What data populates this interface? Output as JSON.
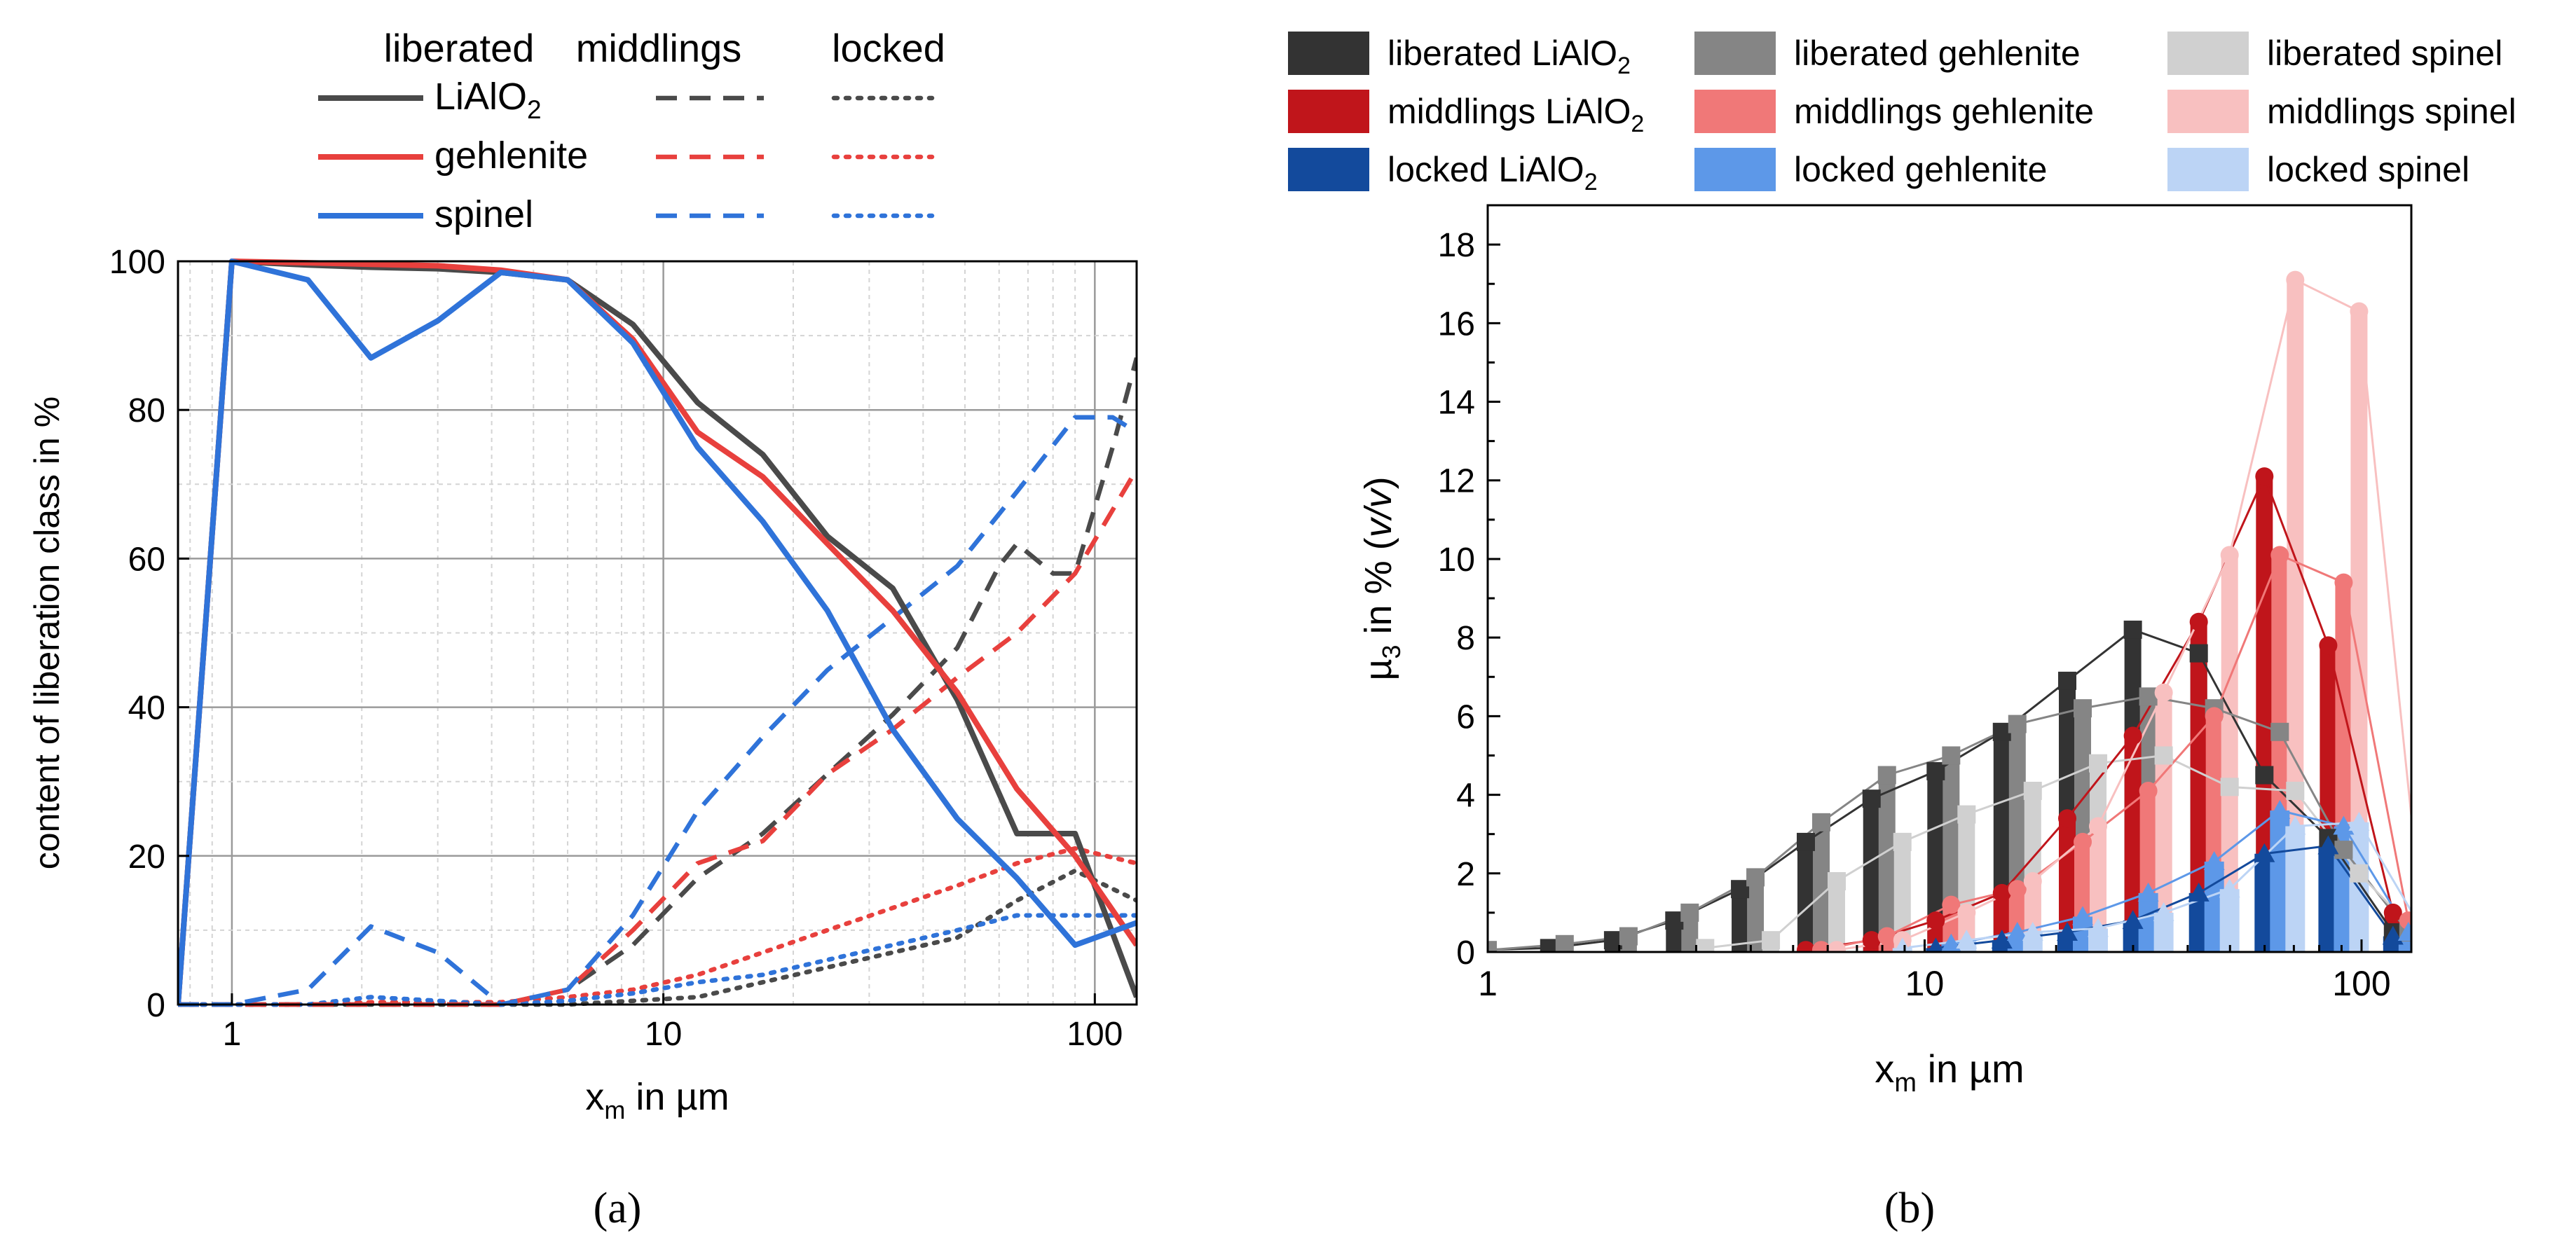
{
  "chart_data": [
    {
      "type": "line",
      "panel_label": "(a)",
      "title": "",
      "xlabel": "x_m in µm",
      "ylabel": "content of liberation class in %",
      "xscale": "log",
      "xlim": [
        0.75,
        125
      ],
      "ylim": [
        0,
        100
      ],
      "x_ticks": [
        1,
        10,
        100
      ],
      "x_tick_labels": [
        "1",
        "10",
        "100"
      ],
      "y_ticks": [
        0,
        20,
        40,
        60,
        80,
        100
      ],
      "y_tick_labels": [
        "0",
        "20",
        "40",
        "60",
        "80",
        "100"
      ],
      "grid": true,
      "legend": {
        "placement": "top",
        "column_headers": [
          "liberated",
          "middlings",
          "locked"
        ],
        "row_labels": [
          "LiAlO2",
          "gehlenite",
          "spinel"
        ]
      },
      "colors": {
        "LiAlO2": "#4a4a4a",
        "gehlenite": "#e8403d",
        "spinel": "#2f73d9"
      },
      "series": [
        {
          "name": "liberated LiAlO2",
          "phase": "LiAlO2",
          "class": "liberated",
          "x": [
            0.75,
            1.0,
            1.5,
            2.1,
            3.0,
            4.2,
            6.0,
            8.5,
            12,
            17,
            24,
            34,
            48,
            66,
            90,
            125
          ],
          "y": [
            0,
            100,
            99.5,
            99.2,
            99,
            98.5,
            97.5,
            91.5,
            81,
            74,
            63,
            56,
            41,
            23,
            23,
            1
          ]
        },
        {
          "name": "liberated gehlenite",
          "phase": "gehlenite",
          "class": "liberated",
          "x": [
            0.75,
            1.0,
            1.5,
            2.1,
            3.0,
            4.2,
            6.0,
            8.5,
            12,
            17,
            24,
            34,
            48,
            66,
            90,
            125
          ],
          "y": [
            0,
            100,
            99.8,
            99.6,
            99.4,
            98.8,
            97.5,
            89.5,
            77,
            71,
            62,
            53,
            42,
            29,
            20,
            8
          ]
        },
        {
          "name": "liberated spinel",
          "phase": "spinel",
          "class": "liberated",
          "x": [
            0.75,
            1.0,
            1.5,
            2.1,
            3.0,
            4.2,
            6.0,
            8.5,
            12,
            17,
            24,
            34,
            48,
            66,
            90,
            125
          ],
          "y": [
            0,
            100,
            97.5,
            87,
            92,
            98.5,
            97.5,
            89,
            75,
            65,
            53,
            37,
            25,
            17,
            8,
            11
          ]
        },
        {
          "name": "middlings LiAlO2",
          "phase": "LiAlO2",
          "class": "middlings",
          "x": [
            0.75,
            1.0,
            1.5,
            2.1,
            3.0,
            4.2,
            6.0,
            8.5,
            12,
            17,
            24,
            34,
            48,
            60,
            66,
            80,
            90,
            110,
            125
          ],
          "y": [
            0,
            0,
            0,
            0,
            0,
            0,
            2,
            8,
            17,
            23,
            31,
            39,
            48,
            59,
            62,
            58,
            58,
            75,
            87
          ]
        },
        {
          "name": "middlings gehlenite",
          "phase": "gehlenite",
          "class": "middlings",
          "x": [
            0.75,
            1.0,
            1.5,
            2.1,
            3.0,
            4.2,
            6.0,
            8.5,
            12,
            17,
            24,
            34,
            48,
            66,
            90,
            125
          ],
          "y": [
            0,
            0,
            0,
            0,
            0,
            0,
            2,
            10,
            19,
            22,
            31,
            37,
            44,
            50,
            58,
            72
          ]
        },
        {
          "name": "middlings spinel",
          "phase": "spinel",
          "class": "middlings",
          "x": [
            0.75,
            1.0,
            1.5,
            2.1,
            3.0,
            4.2,
            6.0,
            8.5,
            12,
            17,
            24,
            34,
            48,
            66,
            90,
            110,
            125
          ],
          "y": [
            0,
            0,
            2,
            10.5,
            7,
            0,
            2,
            12,
            26,
            36,
            45,
            52,
            59,
            69,
            79,
            79,
            77
          ]
        },
        {
          "name": "locked LiAlO2",
          "phase": "LiAlO2",
          "class": "locked",
          "x": [
            0.75,
            1.0,
            1.5,
            2.1,
            3.0,
            4.2,
            6.0,
            8.5,
            12,
            17,
            24,
            34,
            48,
            66,
            90,
            125
          ],
          "y": [
            0,
            0,
            0,
            0,
            0,
            0,
            0,
            0.5,
            1,
            3,
            5,
            7,
            9,
            14,
            18,
            14
          ]
        },
        {
          "name": "locked gehlenite",
          "phase": "gehlenite",
          "class": "locked",
          "x": [
            0.75,
            1.0,
            1.5,
            2.1,
            3.0,
            4.2,
            6.0,
            8.5,
            12,
            17,
            24,
            34,
            48,
            66,
            90,
            125
          ],
          "y": [
            0,
            0,
            0,
            0.3,
            0.3,
            0.3,
            1,
            2,
            4,
            7,
            10,
            13,
            16,
            19,
            21,
            19
          ]
        },
        {
          "name": "locked spinel",
          "phase": "spinel",
          "class": "locked",
          "x": [
            0.75,
            1.0,
            1.5,
            2.1,
            3.0,
            4.2,
            6.0,
            8.5,
            12,
            17,
            24,
            34,
            48,
            66,
            90,
            125
          ],
          "y": [
            0,
            0,
            0,
            1,
            0.5,
            0,
            0.5,
            1.5,
            3,
            4,
            6,
            8,
            10,
            12,
            12,
            12
          ]
        }
      ]
    },
    {
      "type": "bar",
      "panel_label": "(b)",
      "title": "",
      "xlabel": "x_m in µm",
      "ylabel": "µ3 in % (v/v)",
      "xscale": "log",
      "xlim": [
        1,
        130
      ],
      "ylim": [
        0,
        19
      ],
      "x_ticks": [
        1,
        10,
        100
      ],
      "x_tick_labels": [
        "1",
        "10",
        "100"
      ],
      "y_ticks": [
        0,
        2,
        4,
        6,
        8,
        10,
        12,
        14,
        16,
        18
      ],
      "y_tick_labels": [
        "0",
        "2",
        "4",
        "6",
        "8",
        "10",
        "12",
        "14",
        "16",
        "18"
      ],
      "grid": false,
      "legend": {
        "placement": "top",
        "columns": 3
      },
      "series": [
        {
          "name": "liberated LiAlO2",
          "phase": "LiAlO2",
          "class": "liberated",
          "color": "#333333",
          "marker": "square",
          "x": [
            1.0,
            1.5,
            2.1,
            2.9,
            4.1,
            5.8,
            8.2,
            11.5,
            16.3,
            23,
            32.5,
            46,
            65,
            91,
            128
          ],
          "y": [
            0.05,
            0.1,
            0.3,
            0.8,
            1.6,
            2.8,
            3.9,
            4.6,
            5.6,
            6.9,
            8.2,
            7.6,
            4.5,
            2.9,
            0.5
          ]
        },
        {
          "name": "liberated gehlenite",
          "phase": "gehlenite",
          "class": "liberated",
          "color": "#858585",
          "marker": "square",
          "x": [
            1.0,
            1.5,
            2.1,
            2.9,
            4.1,
            5.8,
            8.2,
            11.5,
            16.3,
            23,
            32.5,
            46,
            65,
            91,
            128
          ],
          "y": [
            0.05,
            0.2,
            0.4,
            1.0,
            1.9,
            3.3,
            4.5,
            5.0,
            5.8,
            6.2,
            6.5,
            6.2,
            5.6,
            2.6,
            0.5
          ]
        },
        {
          "name": "liberated spinel",
          "phase": "spinel",
          "class": "liberated",
          "color": "#d0d0d0",
          "marker": "square",
          "x": [
            2.9,
            4.1,
            5.8,
            8.2,
            11.5,
            16.3,
            23,
            32.5,
            46,
            65,
            91,
            128
          ],
          "y": [
            0.1,
            0.3,
            1.8,
            2.8,
            3.5,
            4.1,
            4.8,
            5.0,
            4.2,
            4.1,
            2.0,
            0.3
          ]
        },
        {
          "name": "middlings LiAlO2",
          "phase": "LiAlO2",
          "class": "middlings",
          "color": "#c0151b",
          "marker": "circle",
          "x": [
            5.8,
            8.2,
            11.5,
            16.3,
            23,
            32.5,
            46,
            65,
            91,
            128
          ],
          "y": [
            0.05,
            0.3,
            0.8,
            1.5,
            3.4,
            5.5,
            8.4,
            12.1,
            7.8,
            1.0
          ]
        },
        {
          "name": "middlings gehlenite",
          "phase": "gehlenite",
          "class": "middlings",
          "color": "#f07878",
          "marker": "circle",
          "x": [
            5.8,
            8.2,
            11.5,
            16.3,
            23,
            32.5,
            46,
            65,
            91,
            128
          ],
          "y": [
            0.05,
            0.4,
            1.2,
            1.6,
            2.8,
            4.1,
            6.0,
            10.1,
            9.4,
            0.8
          ]
        },
        {
          "name": "middlings spinel",
          "phase": "spinel",
          "class": "middlings",
          "color": "#f8c0c0",
          "marker": "circle",
          "x": [
            5.8,
            8.2,
            11.5,
            16.3,
            23,
            32.5,
            46,
            65,
            91,
            128
          ],
          "y": [
            0.05,
            0.3,
            1.0,
            1.8,
            3.2,
            6.6,
            10.1,
            17.1,
            16.3,
            0.4
          ]
        },
        {
          "name": "locked LiAlO2",
          "phase": "LiAlO2",
          "class": "locked",
          "color": "#134a9c",
          "marker": "triangle",
          "x": [
            11.5,
            16.3,
            23,
            32.5,
            46,
            65,
            91,
            128
          ],
          "y": [
            0.1,
            0.3,
            0.5,
            0.8,
            1.5,
            2.5,
            2.7,
            0.4
          ]
        },
        {
          "name": "locked gehlenite",
          "phase": "gehlenite",
          "class": "locked",
          "color": "#5d98e8",
          "marker": "triangle",
          "x": [
            11.5,
            16.3,
            23,
            32.5,
            46,
            65,
            91,
            128
          ],
          "y": [
            0.2,
            0.5,
            0.9,
            1.5,
            2.3,
            3.6,
            3.2,
            0.5
          ]
        },
        {
          "name": "locked spinel",
          "phase": "spinel",
          "class": "locked",
          "color": "#bcd4f5",
          "marker": "triangle",
          "x": [
            8.2,
            11.5,
            16.3,
            23,
            32.5,
            46,
            65,
            91,
            128
          ],
          "y": [
            0.1,
            0.3,
            0.5,
            0.6,
            1.0,
            1.6,
            3.2,
            3.3,
            0.5
          ]
        }
      ]
    }
  ]
}
